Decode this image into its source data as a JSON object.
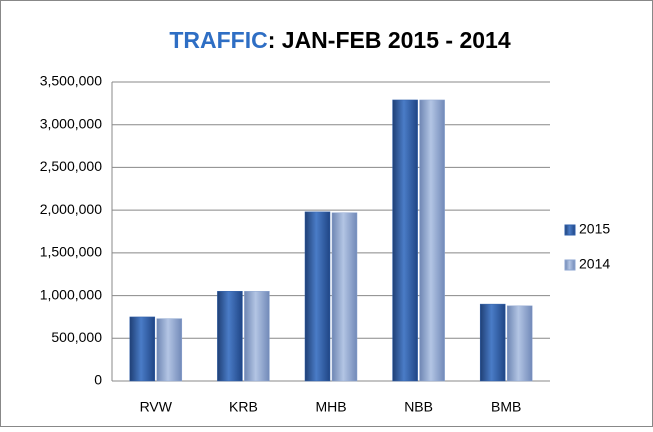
{
  "chart_data": {
    "type": "bar",
    "title": [
      "TRAFFIC",
      ":  JAN-FEB 2015 - 2014"
    ],
    "categories": [
      "RVW",
      "KRB",
      "MHB",
      "NBB",
      "BMB"
    ],
    "series": [
      {
        "name": "2015",
        "color": "#2e5ea8",
        "values": [
          750000,
          1050000,
          1980000,
          3290000,
          900000
        ]
      },
      {
        "name": "2014",
        "color": "#8ea6d0",
        "values": [
          730000,
          1050000,
          1970000,
          3290000,
          880000
        ]
      }
    ],
    "ylim": [
      0,
      3500000
    ],
    "yticks": [
      0,
      {
        "value": 500000,
        "label": "500,000"
      },
      {
        "value": 1000000,
        "label": "1,000,000"
      },
      {
        "value": 1500000,
        "label": "1,500,000"
      },
      {
        "value": 2000000,
        "label": "2,000,000"
      },
      {
        "value": 2500000,
        "label": "2,500,000"
      },
      {
        "value": 3000000,
        "label": "3,000,000"
      },
      {
        "value": 3500000,
        "label": "3,500,000"
      }
    ],
    "grid": true,
    "legend": "right"
  }
}
